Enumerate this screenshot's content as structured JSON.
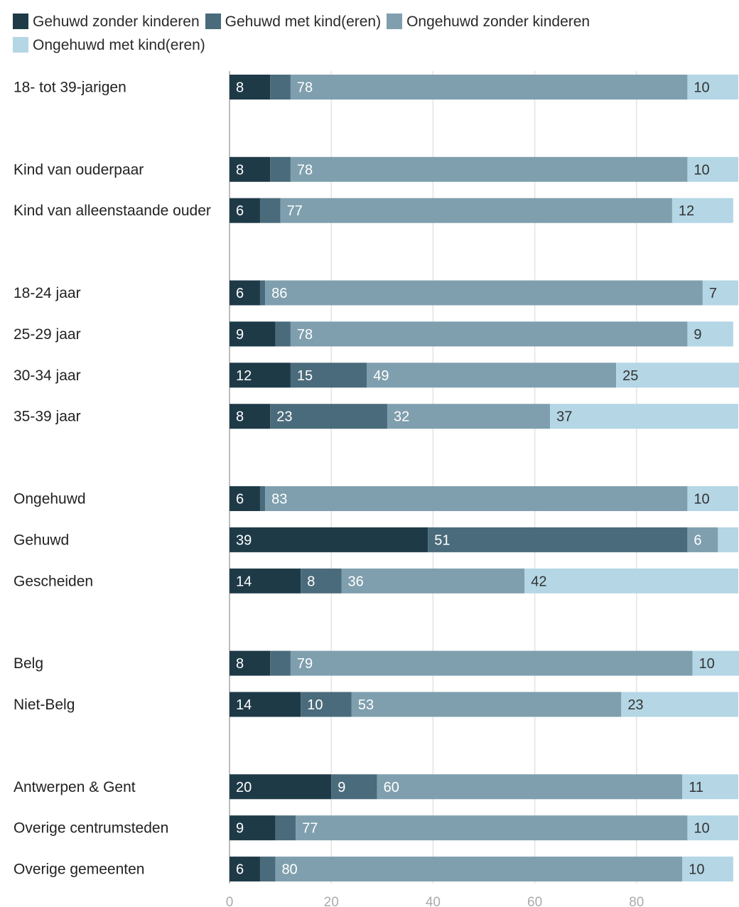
{
  "chart_data": {
    "type": "bar",
    "orientation": "horizontal",
    "stacked": true,
    "title": "",
    "xlabel": "",
    "ylabel": "",
    "xlim": [
      0,
      100
    ],
    "xticks": [
      0,
      20,
      40,
      60,
      80
    ],
    "grid": true,
    "legend_position": "top",
    "colors": [
      "#1e3a47",
      "#4a6b7b",
      "#7f9fae",
      "#b4d6e5"
    ],
    "label_colors": [
      "#ffffff",
      "#ffffff",
      "#ffffff",
      "#333333"
    ],
    "groups": [
      [
        "18- tot 39-jarigen"
      ],
      [
        "Kind van ouderpaar",
        "Kind van alleenstaande ouder"
      ],
      [
        "18-24 jaar",
        "25-29 jaar",
        "30-34 jaar",
        "35-39 jaar"
      ],
      [
        "Ongehuwd",
        "Gehuwd",
        "Gescheiden"
      ],
      [
        "Belg",
        "Niet-Belg"
      ],
      [
        "Antwerpen & Gent",
        "Overige centrumsteden",
        "Overige gemeenten"
      ]
    ],
    "categories": [
      "18- tot 39-jarigen",
      "Kind van ouderpaar",
      "Kind van alleenstaande ouder",
      "18-24 jaar",
      "25-29 jaar",
      "30-34 jaar",
      "35-39 jaar",
      "Ongehuwd",
      "Gehuwd",
      "Gescheiden",
      "Belg",
      "Niet-Belg",
      "Antwerpen & Gent",
      "Overige centrumsteden",
      "Overige gemeenten"
    ],
    "series": [
      {
        "name": "Gehuwd zonder kinderen",
        "values": [
          8,
          8,
          6,
          6,
          9,
          12,
          8,
          6,
          39,
          14,
          8,
          14,
          20,
          9,
          6
        ]
      },
      {
        "name": "Gehuwd met kind(eren)",
        "values": [
          4,
          4,
          4,
          1,
          3,
          15,
          23,
          1,
          51,
          8,
          4,
          10,
          9,
          4,
          3
        ]
      },
      {
        "name": "Ongehuwd zonder kinderen",
        "values": [
          78,
          78,
          77,
          86,
          78,
          49,
          32,
          83,
          6,
          36,
          79,
          53,
          60,
          77,
          80
        ]
      },
      {
        "name": "Ongehuwd met kind(eren)",
        "values": [
          10,
          10,
          12,
          7,
          9,
          25,
          37,
          10,
          4,
          42,
          10,
          23,
          11,
          10,
          10
        ]
      }
    ],
    "data_labels": [
      [
        "8",
        "",
        "78",
        "10"
      ],
      [
        "8",
        "",
        "78",
        "10"
      ],
      [
        "6",
        "",
        "77",
        "12"
      ],
      [
        "6",
        "",
        "86",
        "7"
      ],
      [
        "9",
        "",
        "78",
        "9"
      ],
      [
        "12",
        "15",
        "49",
        "25"
      ],
      [
        "8",
        "23",
        "32",
        "37"
      ],
      [
        "6",
        "",
        "83",
        "10"
      ],
      [
        "39",
        "51",
        "6",
        ""
      ],
      [
        "14",
        "8",
        "36",
        "42"
      ],
      [
        "8",
        "",
        "79",
        "10"
      ],
      [
        "14",
        "10",
        "53",
        "23"
      ],
      [
        "20",
        "9",
        "60",
        "11"
      ],
      [
        "9",
        "",
        "77",
        "10"
      ],
      [
        "6",
        "",
        "80",
        "10"
      ]
    ]
  }
}
